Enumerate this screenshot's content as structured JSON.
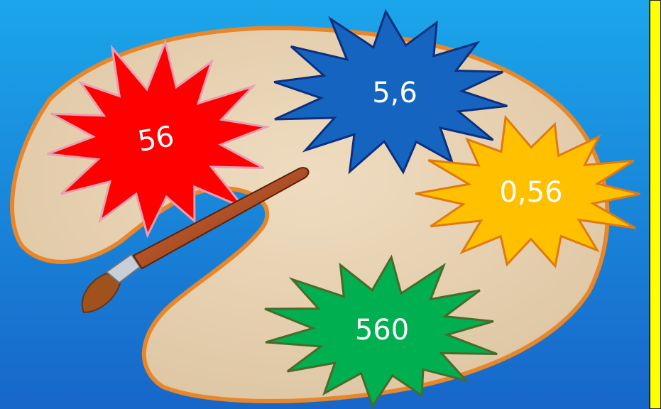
{
  "bursts": [
    {
      "label": "56"
    },
    {
      "label": "5,6"
    },
    {
      "label": "0,56"
    },
    {
      "label": "560"
    }
  ]
}
